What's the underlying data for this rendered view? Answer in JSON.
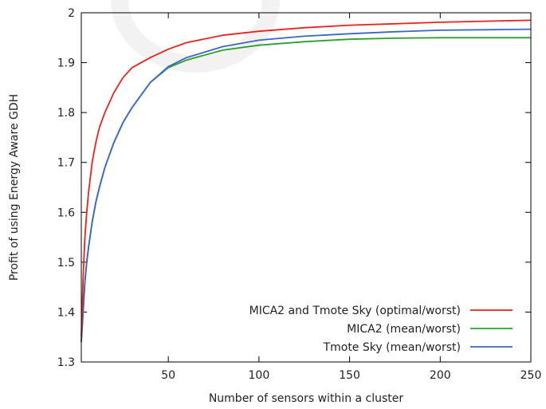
{
  "chart_data": {
    "type": "line",
    "title": "",
    "xlabel": "Number of sensors within a cluster",
    "ylabel": "Profit of using Energy Aware GDH",
    "xlim": [
      2,
      250
    ],
    "ylim": [
      1.3,
      2.0
    ],
    "xticks": [
      50,
      100,
      150,
      200,
      250
    ],
    "yticks": [
      1.3,
      1.4,
      1.5,
      1.6,
      1.7,
      1.8,
      1.9,
      2.0
    ],
    "ytick_labels": [
      "1.3",
      "1.4",
      "1.5",
      "1.6",
      "1.7",
      "1.8",
      "1.9",
      "2"
    ],
    "grid": false,
    "legend_position": "bottom-right",
    "series": [
      {
        "name": "MICA2 and Tmote Sky (optimal/worst)",
        "color": "#e8231d",
        "x": [
          2,
          3,
          4,
          5,
          6,
          8,
          10,
          12,
          15,
          20,
          25,
          30,
          40,
          50,
          60,
          80,
          100,
          125,
          150,
          175,
          200,
          225,
          250
        ],
        "y": [
          1.35,
          1.47,
          1.55,
          1.6,
          1.64,
          1.7,
          1.74,
          1.77,
          1.8,
          1.84,
          1.87,
          1.89,
          1.91,
          1.927,
          1.94,
          1.955,
          1.963,
          1.97,
          1.975,
          1.978,
          1.981,
          1.983,
          1.985
        ]
      },
      {
        "name": "MICA2 (mean/worst)",
        "color": "#2ca02c",
        "x": [
          2,
          3,
          4,
          5,
          6,
          8,
          10,
          12,
          15,
          20,
          25,
          30,
          40,
          50,
          60,
          80,
          100,
          125,
          150,
          175,
          200,
          225,
          250
        ],
        "y": [
          1.34,
          1.4,
          1.46,
          1.5,
          1.53,
          1.58,
          1.62,
          1.65,
          1.69,
          1.74,
          1.78,
          1.81,
          1.86,
          1.89,
          1.905,
          1.925,
          1.935,
          1.942,
          1.947,
          1.949,
          1.95,
          1.95,
          1.95
        ]
      },
      {
        "name": "Tmote Sky (mean/worst)",
        "color": "#3b66c4",
        "x": [
          2,
          3,
          4,
          5,
          6,
          8,
          10,
          12,
          15,
          20,
          25,
          30,
          40,
          50,
          60,
          80,
          100,
          125,
          150,
          175,
          200,
          225,
          250
        ],
        "y": [
          1.34,
          1.4,
          1.46,
          1.5,
          1.53,
          1.58,
          1.62,
          1.65,
          1.69,
          1.74,
          1.78,
          1.81,
          1.86,
          1.892,
          1.91,
          1.932,
          1.945,
          1.953,
          1.958,
          1.962,
          1.965,
          1.966,
          1.967
        ]
      }
    ]
  }
}
